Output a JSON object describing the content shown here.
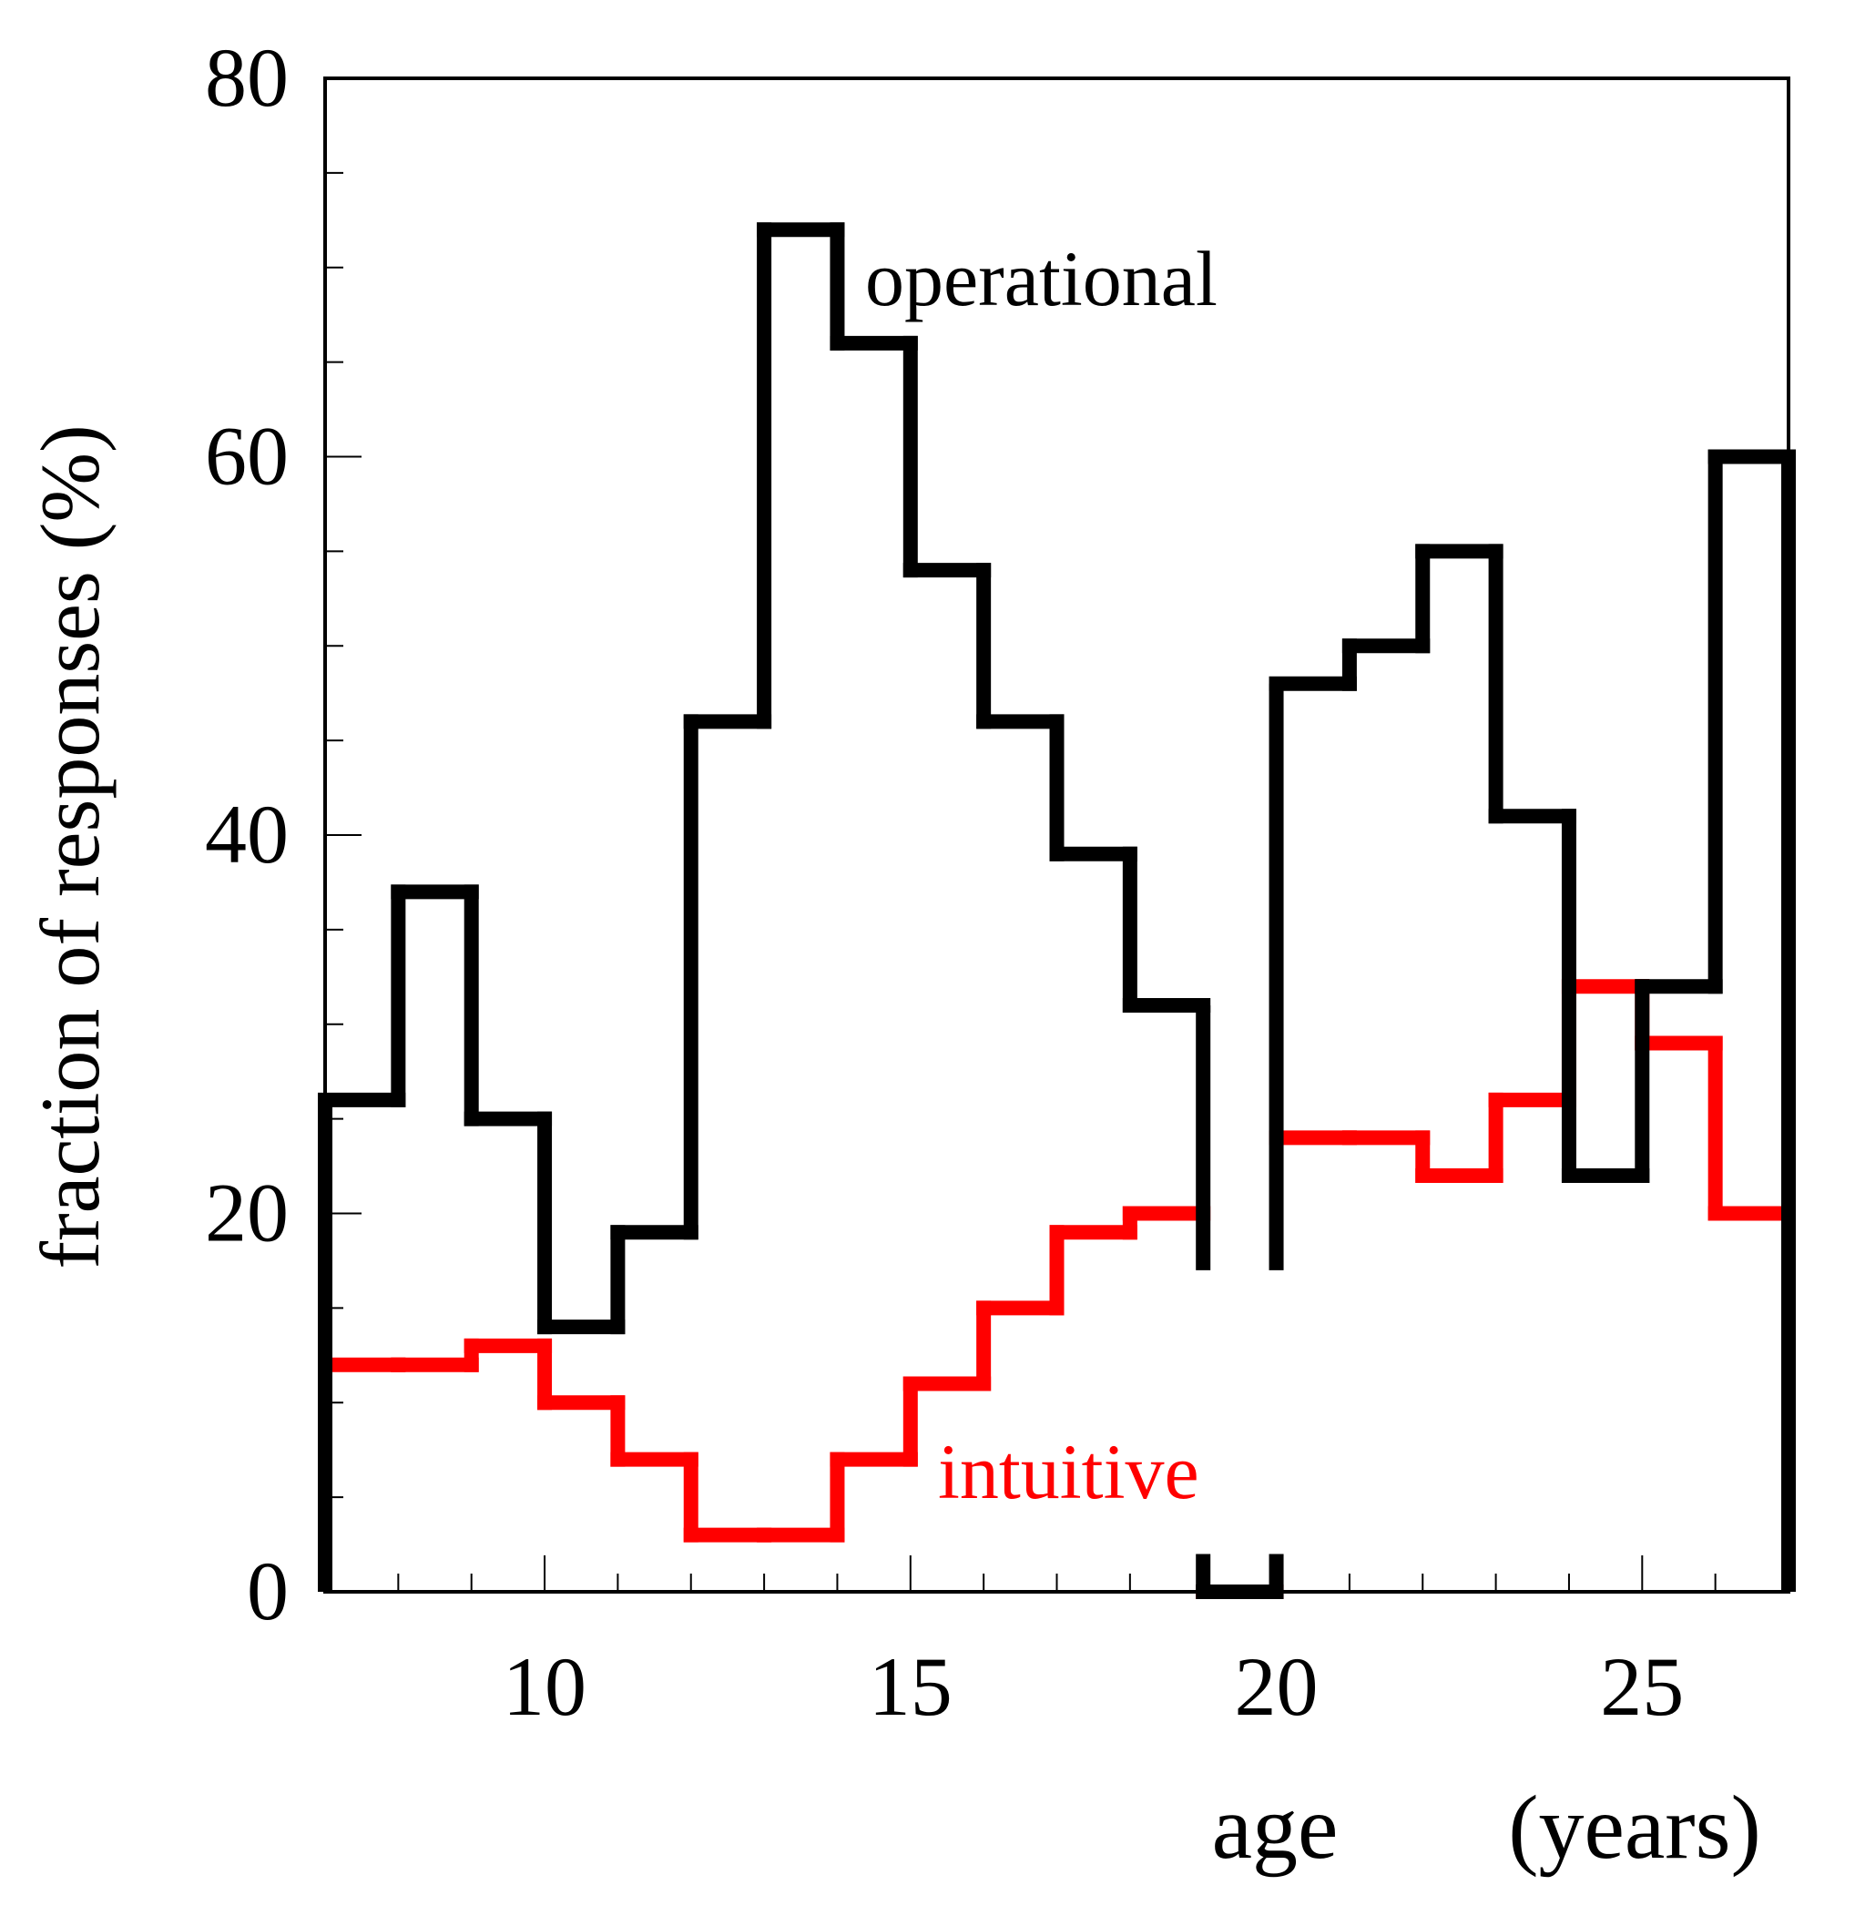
{
  "chart_data": {
    "type": "step",
    "title": "",
    "xlabel": "age",
    "xlabel_units": "(years)",
    "ylabel": "fraction of responses (%)",
    "xlim": [
      7,
      27
    ],
    "ylim": [
      0,
      80
    ],
    "x_major_ticks": [
      10,
      15,
      20,
      25
    ],
    "x_minor_step": 1,
    "y_major_ticks": [
      0,
      20,
      40,
      60,
      80
    ],
    "y_minor_step": 5,
    "bin_edges": [
      7,
      8,
      9,
      10,
      11,
      12,
      13,
      14,
      15,
      16,
      17,
      18,
      19,
      20,
      21,
      22,
      23,
      24,
      25,
      26,
      27
    ],
    "series": [
      {
        "name": "operational",
        "label": "operational",
        "color": "#000000",
        "values": [
          26,
          37,
          25,
          14,
          19,
          46,
          72,
          66,
          54,
          46,
          39,
          31,
          0,
          48,
          50,
          55,
          41,
          22,
          32,
          60
        ]
      },
      {
        "name": "intuitive",
        "label": "intuitive",
        "color": "#ff0000",
        "values": [
          12,
          12,
          13,
          10,
          7,
          3,
          3,
          7,
          11,
          15,
          19,
          20,
          0,
          24,
          24,
          22,
          26,
          32,
          29,
          20
        ]
      }
    ]
  }
}
